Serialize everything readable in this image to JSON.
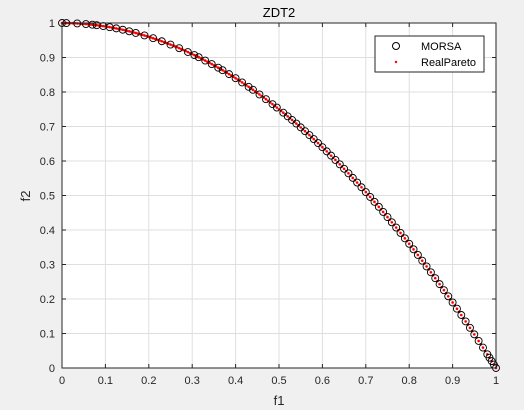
{
  "chart_data": {
    "type": "scatter",
    "title": "ZDT2",
    "xlabel": "f1",
    "ylabel": "f2",
    "xlim": [
      0,
      1
    ],
    "ylim": [
      0,
      1
    ],
    "grid": true,
    "legend_position": "top-right",
    "xticks": [
      "0",
      "0.1",
      "0.2",
      "0.3",
      "0.4",
      "0.5",
      "0.6",
      "0.7",
      "0.8",
      "0.9",
      "1"
    ],
    "yticks": [
      "0",
      "0.1",
      "0.2",
      "0.3",
      "0.4",
      "0.5",
      "0.6",
      "0.7",
      "0.8",
      "0.9",
      "1"
    ],
    "series": [
      {
        "name": "MORSA",
        "marker": "circle-open",
        "color": "#000000",
        "x": [
          0.0,
          0.01,
          0.035,
          0.055,
          0.07,
          0.08,
          0.095,
          0.11,
          0.125,
          0.14,
          0.155,
          0.17,
          0.19,
          0.21,
          0.23,
          0.25,
          0.27,
          0.29,
          0.305,
          0.315,
          0.33,
          0.345,
          0.36,
          0.37,
          0.385,
          0.4,
          0.415,
          0.43,
          0.44,
          0.455,
          0.47,
          0.485,
          0.495,
          0.51,
          0.52,
          0.53,
          0.54,
          0.55,
          0.56,
          0.57,
          0.58,
          0.59,
          0.6,
          0.61,
          0.62,
          0.63,
          0.64,
          0.65,
          0.66,
          0.67,
          0.68,
          0.69,
          0.7,
          0.71,
          0.72,
          0.73,
          0.74,
          0.75,
          0.76,
          0.77,
          0.78,
          0.79,
          0.8,
          0.81,
          0.82,
          0.83,
          0.84,
          0.85,
          0.86,
          0.87,
          0.88,
          0.89,
          0.9,
          0.91,
          0.92,
          0.93,
          0.94,
          0.95,
          0.96,
          0.97,
          0.98,
          0.985,
          0.99,
          0.995,
          1.0
        ],
        "y": [
          1.0,
          0.9999,
          0.9988,
          0.997,
          0.9951,
          0.9936,
          0.991,
          0.9879,
          0.9844,
          0.9804,
          0.976,
          0.9711,
          0.9639,
          0.9559,
          0.9471,
          0.9375,
          0.9271,
          0.9159,
          0.907,
          0.9008,
          0.8911,
          0.881,
          0.8704,
          0.8631,
          0.8518,
          0.84,
          0.8278,
          0.8151,
          0.8064,
          0.793,
          0.7791,
          0.7648,
          0.755,
          0.7399,
          0.7296,
          0.7191,
          0.7084,
          0.6975,
          0.6864,
          0.6751,
          0.6636,
          0.6519,
          0.64,
          0.6279,
          0.6156,
          0.6031,
          0.5904,
          0.5775,
          0.5644,
          0.5511,
          0.5376,
          0.5239,
          0.51,
          0.4959,
          0.4816,
          0.4671,
          0.4524,
          0.4375,
          0.4224,
          0.4071,
          0.3916,
          0.3759,
          0.36,
          0.3439,
          0.3276,
          0.3111,
          0.2944,
          0.2775,
          0.2604,
          0.2431,
          0.2256,
          0.2079,
          0.19,
          0.1719,
          0.1536,
          0.1351,
          0.1164,
          0.0975,
          0.0784,
          0.0591,
          0.0396,
          0.0298,
          0.0199,
          0.01,
          0.0
        ]
      },
      {
        "name": "RealPareto",
        "marker": "dot",
        "color": "#ff0000",
        "function": "f2 = 1 - f1^2",
        "points": 200
      }
    ]
  }
}
